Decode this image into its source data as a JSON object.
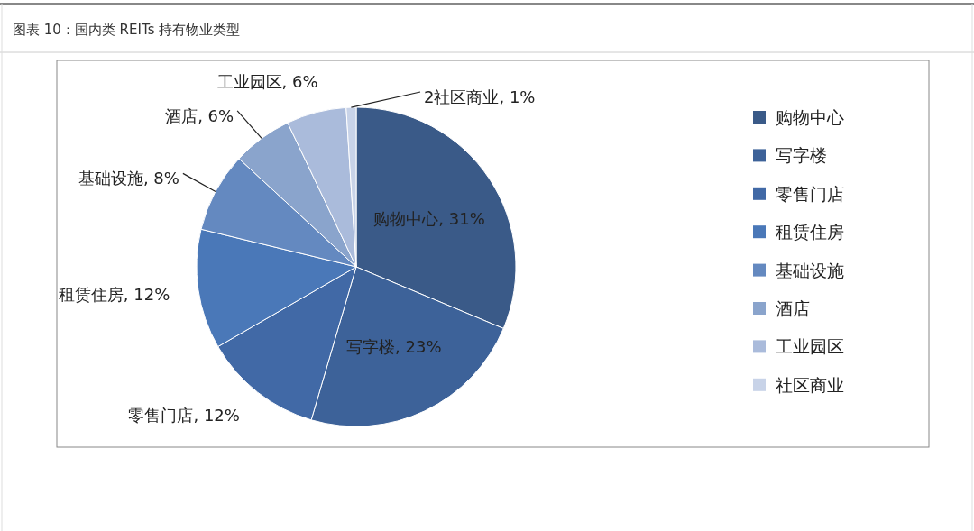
{
  "chart_data": {
    "type": "pie",
    "title": "图表 10：国内类 REITs 持有物业类型",
    "categories": [
      "购物中心",
      "写字楼",
      "零售门店",
      "租赁住房",
      "基础设施",
      "酒店",
      "工业园区",
      "社区商业"
    ],
    "values": [
      31,
      23,
      12,
      12,
      8,
      6,
      6,
      1
    ],
    "colors": [
      "#3a5a88",
      "#3d6299",
      "#4169a6",
      "#4a78b8",
      "#6489c0",
      "#8aa4cc",
      "#aabbdb",
      "#c8d3e8"
    ],
    "value_labels": [
      "购物中心, 31%",
      "写字楼, 23%",
      "零售门店, 12%",
      "租赁住房, 12%",
      "基础设施, 8%",
      "酒店, 6%",
      "工业园区, 6%",
      "2社区商业, 1%"
    ],
    "legend": "right"
  }
}
